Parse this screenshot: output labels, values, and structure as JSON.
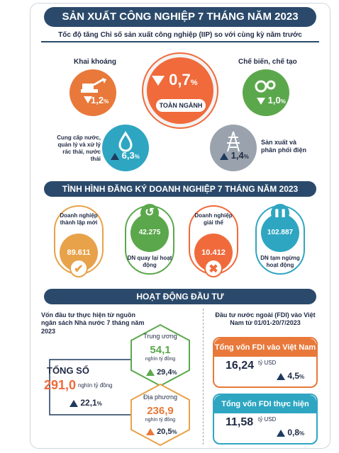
{
  "title": "SẢN XUẤT CÔNG NGHIỆP 7 THÁNG NĂM 2023",
  "subtitle": "Tốc độ tăng Chỉ số sản xuất công nghiệp (IIP) so với cùng kỳ năm trước",
  "iip": {
    "total": {
      "label": "TOÀN NGÀNH",
      "value": "0,7",
      "unit": "%",
      "direction": "down",
      "color": "#f06a3c"
    },
    "mining": {
      "label": "Khai khoáng",
      "value": "1,2",
      "unit": "%",
      "direction": "down",
      "color": "#e8793a",
      "icon": "excavator-icon"
    },
    "manufacturing": {
      "label": "Chế biến, chế tạo",
      "value": "1,0",
      "unit": "%",
      "direction": "down",
      "color": "#5ba84c",
      "icon": "gears-icon"
    },
    "water": {
      "label": "Cung cấp nước, quản lý và xử lý rác thải, nước thải",
      "value": "6,3",
      "unit": "%",
      "direction": "up",
      "color": "#2ea6c2",
      "icon": "water-drop-icon"
    },
    "electricity": {
      "label": "Sản xuất và phân phối điện",
      "value": "1,4",
      "unit": "%",
      "direction": "up",
      "color": "#9aa3ad",
      "icon": "power-tower-icon"
    }
  },
  "business_title": "TÌNH HÌNH ĐĂNG KÝ DOANH NGHIỆP 7 THÁNG NĂM 2023",
  "business": [
    {
      "label": "Doanh nghiệp thành lập mới",
      "value": "89.611",
      "color": "#e8a24a",
      "icon": "check-icon"
    },
    {
      "label": "DN quay lại hoạt động",
      "value": "42.275",
      "color": "#5ba84c",
      "icon": "return-icon"
    },
    {
      "label": "Doanh nghiệp giải thể",
      "value": "10.412",
      "color": "#f06a3c",
      "icon": "x-icon"
    },
    {
      "label": "DN tạm ngừng hoạt động",
      "value": "102.887",
      "color": "#2ea6c2",
      "icon": "pause-icon"
    }
  ],
  "invest_title": "HOẠT ĐỘNG ĐẦU TƯ",
  "budget": {
    "heading": "Vốn đầu tư thực hiện từ nguồn ngân sách Nhà nước 7 tháng năm 2023",
    "total_label": "TỔNG SỐ",
    "total_value": "291,0",
    "total_unit": "nghìn tỷ đồng",
    "total_growth": "22,1",
    "central_label": "Trung ương",
    "central_value": "54,1",
    "central_unit": "nghìn tỷ đồng",
    "central_growth": "29,4",
    "local_label": "Địa phương",
    "local_value": "236,9",
    "local_unit": "nghìn tỷ đồng",
    "local_growth": "20,5",
    "percent": "%"
  },
  "fdi": {
    "heading": "Đầu tư nước ngoài (FDI) vào Việt Nam từ 01/01-20/7/2023",
    "registered_label": "Tổng vốn FDI vào Việt Nam",
    "registered_value": "16,24",
    "registered_unit": "tỷ USD",
    "registered_growth": "4,5",
    "realized_label": "Tổng vốn FDI thực hiện",
    "realized_value": "11,58",
    "realized_unit": "tỷ USD",
    "realized_growth": "0,8",
    "percent": "%",
    "color_registered": "#e8793a",
    "color_realized": "#2ea6c2"
  }
}
